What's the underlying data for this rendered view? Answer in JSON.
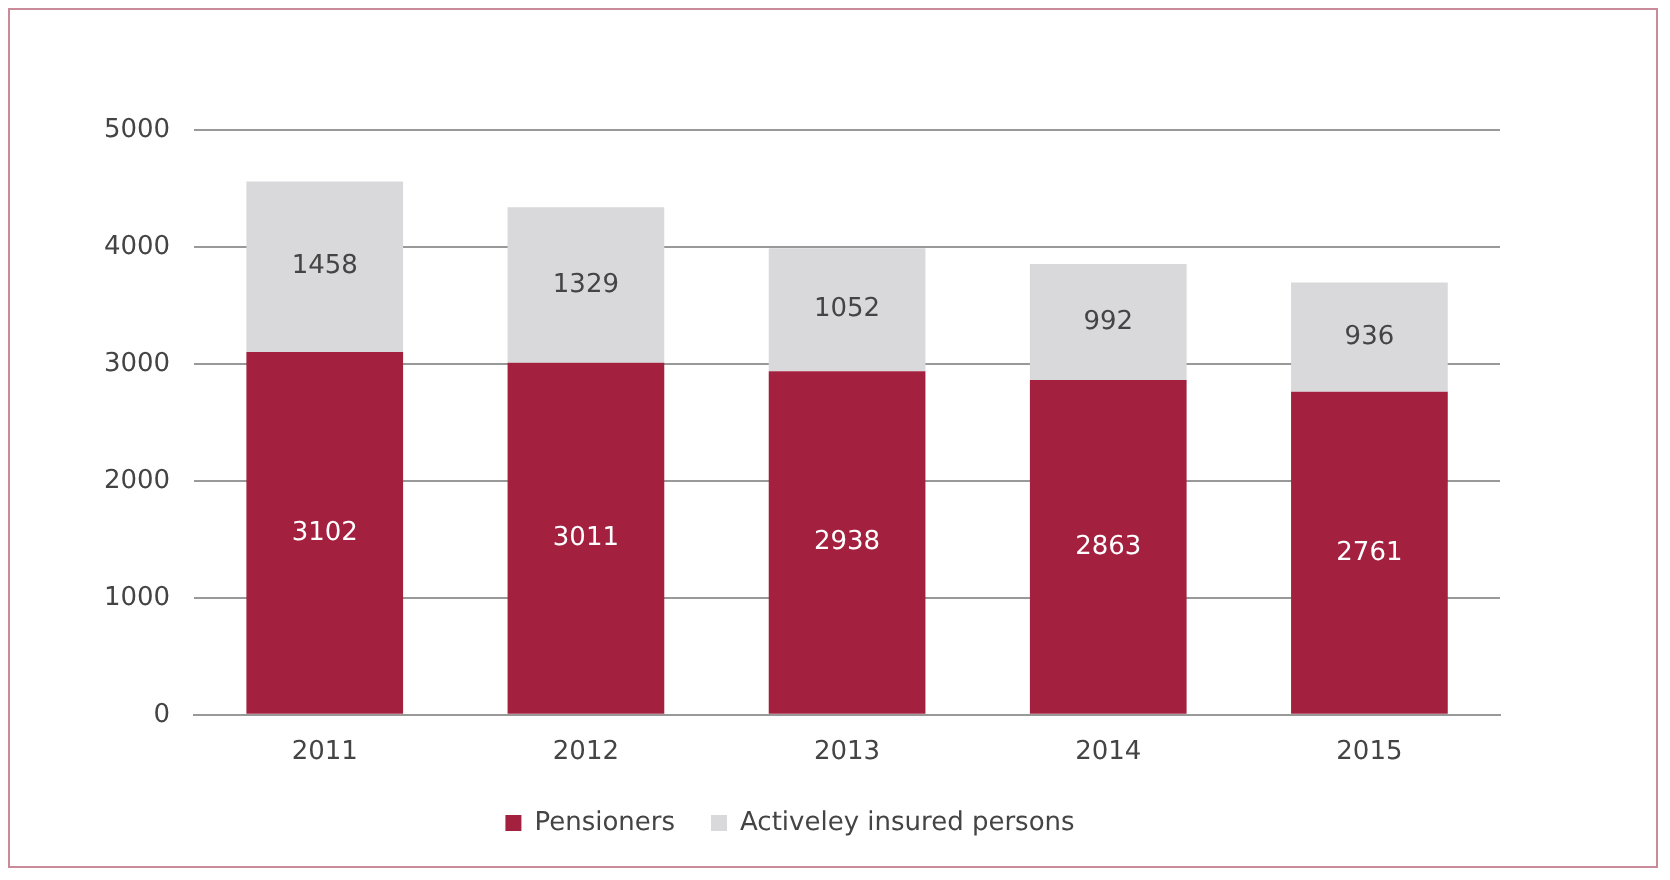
{
  "chart_data": {
    "type": "bar",
    "stacked": true,
    "categories": [
      "2011",
      "2012",
      "2013",
      "2014",
      "2015"
    ],
    "series": [
      {
        "name": "Pensioners",
        "color": "#a3203f",
        "values": [
          3102,
          3011,
          2938,
          2863,
          2761
        ]
      },
      {
        "name": "Activeley insured persons",
        "color": "#d9d9db",
        "values": [
          1458,
          1329,
          1052,
          992,
          936
        ]
      }
    ],
    "ylim": [
      0,
      5000
    ],
    "yticks": [
      0,
      1000,
      2000,
      3000,
      4000,
      5000
    ],
    "grid": "y",
    "legend": "bottom",
    "data_labels": true
  }
}
